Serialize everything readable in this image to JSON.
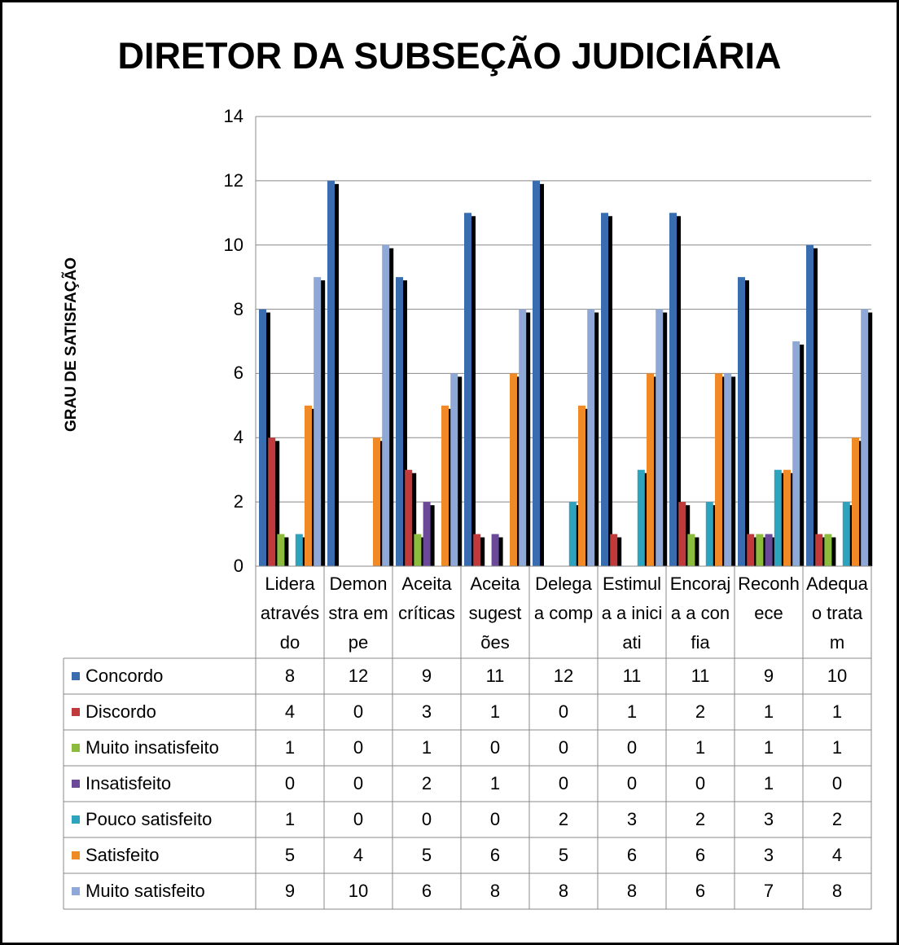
{
  "chart_data": {
    "type": "bar",
    "title": "DIRETOR DA SUBSEÇÃO JUDICIÁRIA",
    "y_label": "GRAU DE SATISFAÇÃO",
    "categories": [
      "Lidera através do",
      "Demonstra empe",
      "Aceita críticas",
      "Aceita sugestões",
      "Delega a comp",
      "Estimula a iniciati",
      "Encoraja a confia",
      "Reconhece",
      "Adequa o tratam"
    ],
    "series": [
      {
        "name": "Concordo",
        "color": "#3a6db0",
        "values": [
          8,
          12,
          9,
          11,
          12,
          11,
          11,
          9,
          10
        ]
      },
      {
        "name": "Discordo",
        "color": "#c0393b",
        "values": [
          4,
          0,
          3,
          1,
          0,
          1,
          2,
          1,
          1
        ]
      },
      {
        "name": "Muito insatisfeito",
        "color": "#8cbc3c",
        "values": [
          1,
          0,
          1,
          0,
          0,
          0,
          1,
          1,
          1
        ]
      },
      {
        "name": "Insatisfeito",
        "color": "#6a4a98",
        "values": [
          0,
          0,
          2,
          1,
          0,
          0,
          0,
          1,
          0
        ]
      },
      {
        "name": "Pouco satisfeito",
        "color": "#2ea3bd",
        "values": [
          1,
          0,
          0,
          0,
          2,
          3,
          2,
          3,
          2
        ]
      },
      {
        "name": "Satisfeito",
        "color": "#ef8a26",
        "values": [
          5,
          4,
          5,
          6,
          5,
          6,
          6,
          3,
          4
        ]
      },
      {
        "name": "Muito satisfeito",
        "color": "#8ea8d8",
        "values": [
          9,
          10,
          6,
          8,
          8,
          8,
          6,
          7,
          8
        ]
      }
    ],
    "ylim": [
      0,
      14
    ],
    "yticks": [
      0,
      2,
      4,
      6,
      8,
      10,
      12,
      14
    ],
    "grid": true
  }
}
